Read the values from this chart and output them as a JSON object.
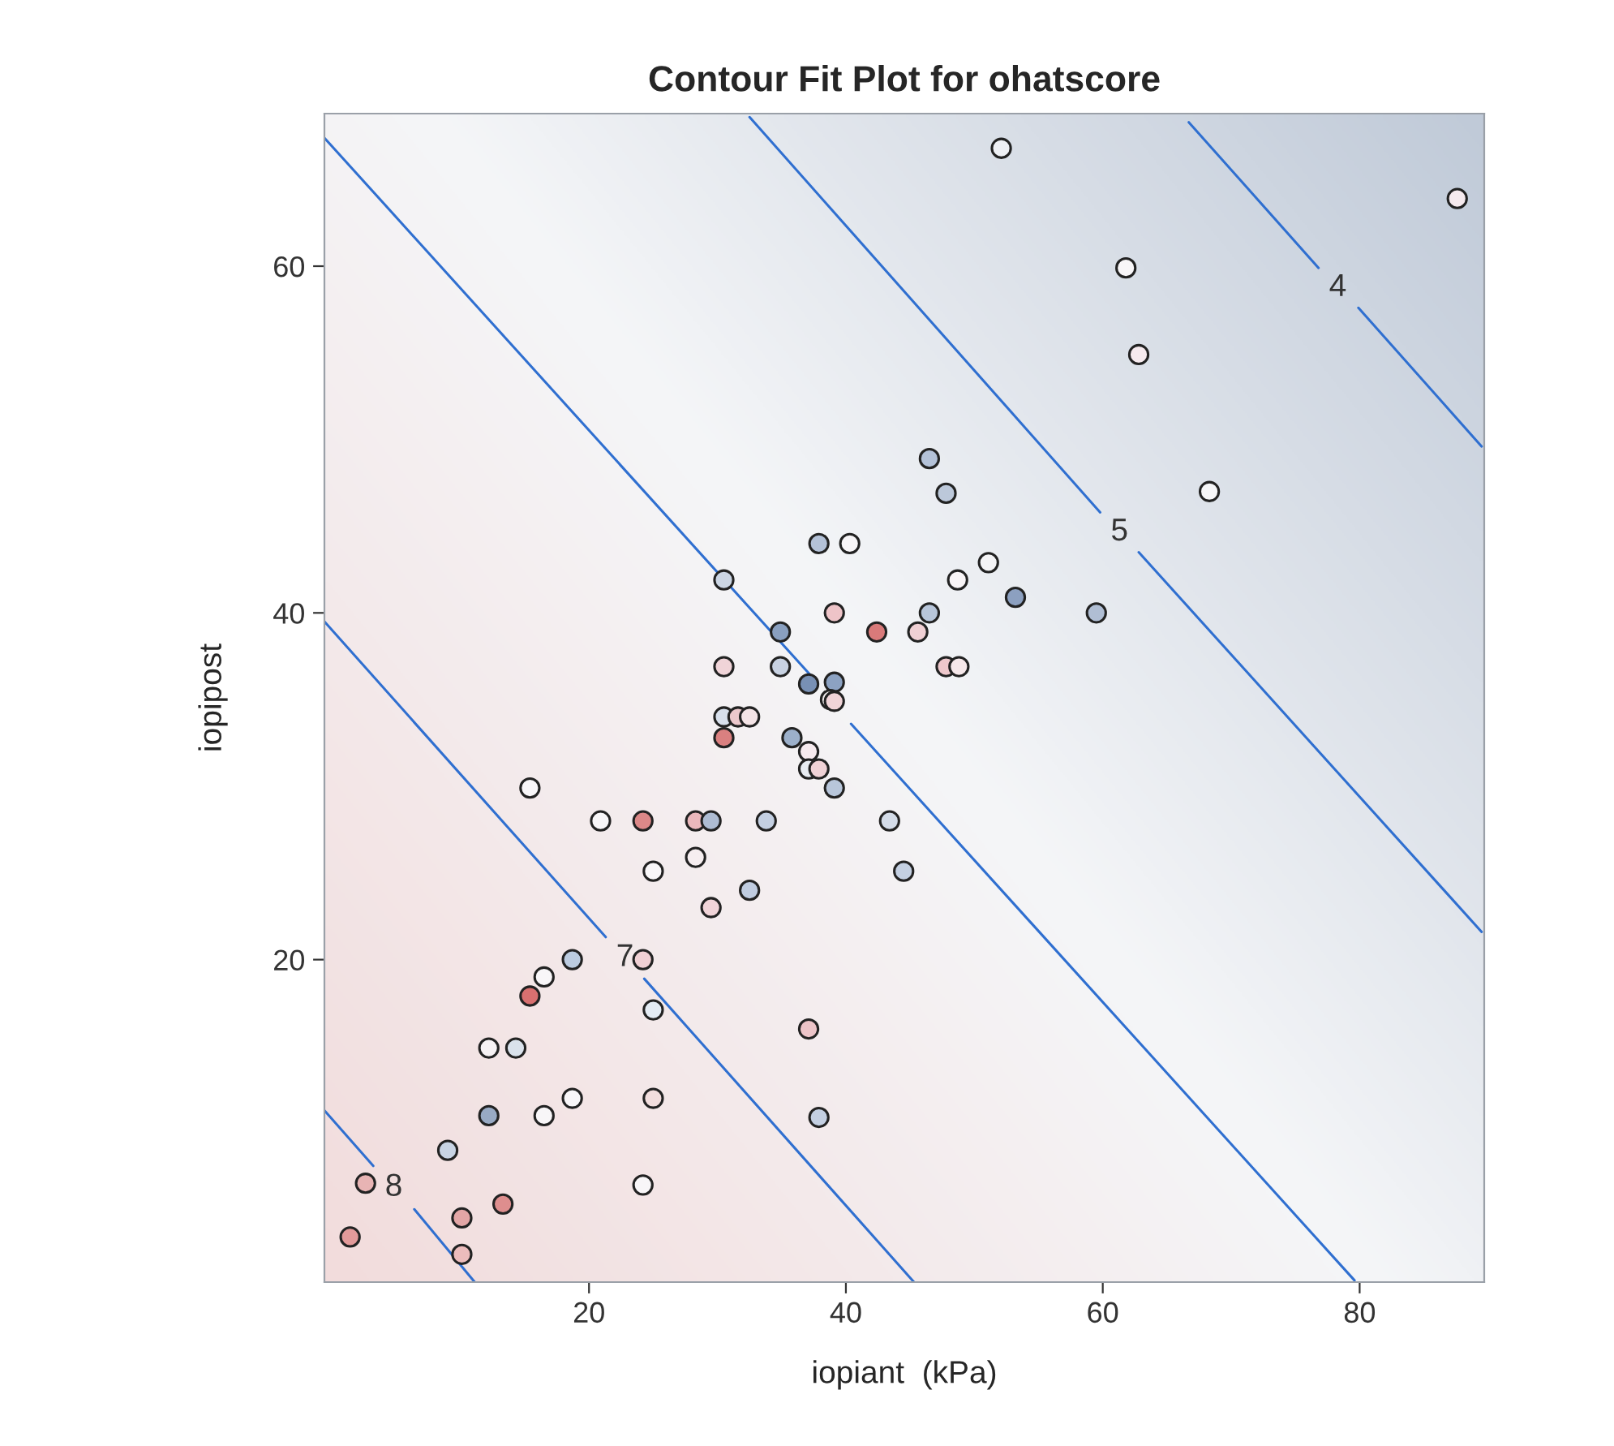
{
  "chart_data": {
    "type": "scatter",
    "title": "Contour Fit Plot for ohatscore",
    "xlabel": "iopiant  (kPa)",
    "ylabel": "iopipost",
    "xlim": [
      -0.6,
      89.7
    ],
    "ylim": [
      1.4,
      68.8
    ],
    "xticks": [
      20,
      40,
      60,
      80
    ],
    "yticks": [
      20,
      40,
      60
    ],
    "grid": false,
    "series": [
      {
        "marker": "circle",
        "x": [
          1.4,
          2.6,
          9.0,
          10.1,
          10.1,
          13.3,
          12.2,
          12.2,
          14.3,
          16.5,
          18.7,
          24.2,
          25.0,
          25.0,
          15.4,
          16.5,
          18.7,
          24.2,
          15.4,
          20.9,
          24.2,
          28.3,
          29.5,
          28.3,
          25.0,
          32.5,
          29.5,
          33.8,
          43.4,
          44.5,
          37.1,
          37.9,
          30.5,
          31.6,
          32.5,
          30.5,
          35.8,
          37.1,
          37.1,
          37.9,
          39.1,
          30.5,
          34.9,
          37.1,
          39.1,
          38.8,
          39.1,
          34.9,
          39.1,
          42.4,
          45.6,
          46.5,
          47.8,
          48.8,
          30.5,
          37.9,
          40.3,
          46.5,
          47.8,
          48.7,
          51.1,
          53.2,
          59.5,
          68.3,
          52.1,
          61.8,
          62.8,
          87.6
        ],
        "values": [
          4.0,
          7.1,
          9.0,
          5.1,
          3.0,
          5.9,
          11.0,
          14.9,
          14.9,
          11.0,
          12.0,
          7.0,
          12.0,
          17.1,
          17.9,
          19.0,
          20.0,
          20.0,
          29.9,
          28.0,
          28.0,
          28.0,
          28.0,
          25.9,
          25.1,
          24.0,
          23.0,
          28.0,
          28.0,
          25.1,
          16.0,
          10.9,
          34.0,
          34.0,
          34.0,
          32.8,
          32.8,
          32.0,
          31.0,
          31.0,
          29.9,
          36.9,
          36.9,
          35.9,
          36.0,
          35.0,
          34.9,
          38.9,
          40.0,
          38.9,
          38.9,
          40.0,
          36.9,
          36.9,
          41.9,
          44.0,
          44.0,
          48.9,
          46.9,
          41.9,
          42.9,
          40.9,
          40.0,
          47.0,
          66.8,
          59.9,
          54.9,
          63.9
        ],
        "colors": [
          "#e39a9a",
          "#e8b4b4",
          "#c8d4e4",
          "#e3a6a6",
          "#ecbcbc",
          "#de8e8e",
          "#98aac4",
          "#f6f2f4",
          "#dae2ec",
          "#f8f6f8",
          "#f8f6f8",
          "#f8f6f8",
          "#f2dede",
          "#e4ecf4",
          "#d87070",
          "#f8f6f8",
          "#bccce0",
          "#f0d0d4",
          "#f8f6f8",
          "#f8f6f8",
          "#dc8888",
          "#eab8bc",
          "#aebcd2",
          "#f6eef0",
          "#f8f6f8",
          "#c0cce0",
          "#f0d4d8",
          "#c4d0e2",
          "#d4dce8",
          "#c4d0e2",
          "#ecc4c8",
          "#c4d0e2",
          "#d8e0ec",
          "#ecc8cc",
          "#f4e4e6",
          "#da8080",
          "#9cb0ca",
          "#f6eaee",
          "#e8ecf2",
          "#efd2d6",
          "#b8c6da",
          "#f0d4d8",
          "#c8d2e2",
          "#7890b4",
          "#8ca2c2",
          "#f4f0f0",
          "#f0d4d8",
          "#8aa0c0",
          "#eec4c8",
          "#d97a7a",
          "#f0d0d4",
          "#b8c6da",
          "#eec8cc",
          "#f6e8ea",
          "#ccd6e4",
          "#b4c2d8",
          "#f8f6f8",
          "#b4c2d8",
          "#bcc8da",
          "#f8f4f6",
          "#f4f4f6",
          "#8ca0c0",
          "#b0bed4",
          "#f6f6f8",
          "#eef0f4",
          "#f8f6f8",
          "#f6eaee",
          "#f6eaee"
        ]
      },
      {
        "type": "line",
        "name": "8",
        "color": "#2f6fd0",
        "line_style": "solid",
        "x": [
          -0.6,
          3.2,
          4.8,
          6.4,
          11.1
        ],
        "values": [
          11.3,
          8.1,
          null,
          5.6,
          1.4
        ]
      },
      {
        "type": "line",
        "name": "7",
        "color": "#2f6fd0",
        "line_style": "solid",
        "x": [
          -0.6,
          21.3,
          22.8,
          24.3,
          45.3
        ],
        "values": [
          39.5,
          21.3,
          null,
          18.9,
          1.4
        ]
      },
      {
        "type": "line",
        "color": "#2f6fd0",
        "line_style": "solid",
        "x": [
          -0.6,
          37.5,
          39.0,
          40.4,
          79.6
        ],
        "values": [
          67.4,
          36.2,
          null,
          33.6,
          1.5
        ]
      },
      {
        "type": "line",
        "name": "5",
        "color": "#2f6fd0",
        "line_style": "solid",
        "x": [
          32.5,
          59.8,
          61.3,
          62.8,
          89.5
        ],
        "values": [
          68.6,
          45.8,
          null,
          43.5,
          21.6
        ]
      },
      {
        "type": "line",
        "name": "4",
        "color": "#2f6fd0",
        "line_style": "solid",
        "x": [
          66.7,
          76.8,
          78.3,
          79.9,
          89.5
        ],
        "values": [
          68.3,
          59.9,
          null,
          57.6,
          49.6
        ]
      }
    ]
  }
}
